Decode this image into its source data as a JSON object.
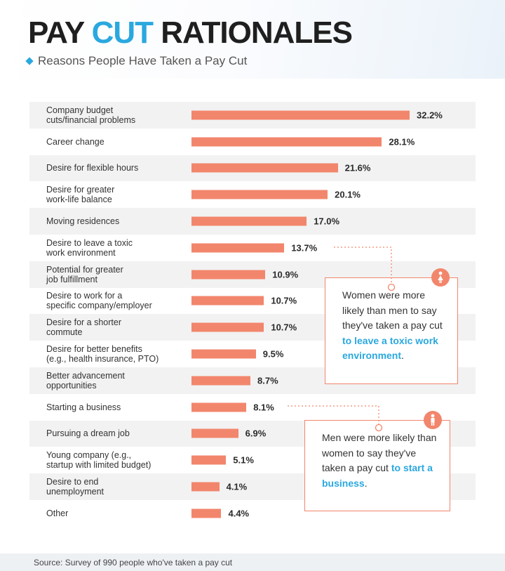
{
  "header": {
    "title_part1": "PAY ",
    "title_accent": "CUT",
    "title_part2": " RATIONALES",
    "subtitle": "Reasons People Have Taken a Pay Cut"
  },
  "colors": {
    "bar": "#f2866c",
    "accent": "#2aa8df",
    "row_shade": "#f2f2f2"
  },
  "chart_data": {
    "type": "bar",
    "orientation": "horizontal",
    "title": "PAY CUT RATIONALES",
    "subtitle": "Reasons People Have Taken a Pay Cut",
    "categories": [
      "Company budget\ncuts/financial problems",
      "Career change",
      "Desire for flexible hours",
      "Desire for greater\nwork-life balance",
      "Moving residences",
      "Desire to leave a toxic\nwork environment",
      "Potential for greater\njob fulfillment",
      "Desire to work for a\nspecific company/employer",
      "Desire for a shorter\ncommute",
      "Desire for better benefits\n(e.g., health insurance, PTO)",
      "Better advancement\nopportunities",
      "Starting a business",
      "Pursuing a dream job",
      "Young company (e.g.,\nstartup with limited budget)",
      "Desire to end\nunemployment",
      "Other"
    ],
    "values": [
      32.2,
      28.1,
      21.6,
      20.1,
      17.0,
      13.7,
      10.9,
      10.7,
      10.7,
      9.5,
      8.7,
      8.1,
      6.9,
      5.1,
      4.1,
      4.4
    ],
    "value_labels": [
      "32.2%",
      "28.1%",
      "21.6%",
      "20.1%",
      "17.0%",
      "13.7%",
      "10.9%",
      "10.7%",
      "10.7%",
      "9.5%",
      "8.7%",
      "8.1%",
      "6.9%",
      "5.1%",
      "4.1%",
      "4.4%"
    ],
    "unit": "%",
    "xlim": [
      0,
      33
    ],
    "grid": false,
    "legend": "none"
  },
  "callouts": [
    {
      "icon": "female-icon",
      "text_before": "Women were more likely than men to say they've taken a pay cut ",
      "highlight": "to leave a toxic work environment",
      "text_after": ".",
      "target_index": 5
    },
    {
      "icon": "male-icon",
      "text_before": "Men were more likely than women to say they've taken a pay cut ",
      "highlight": "to start a business",
      "text_after": ".",
      "target_index": 11
    }
  ],
  "source": "Source: Survey of 990 people who've taken a pay cut"
}
